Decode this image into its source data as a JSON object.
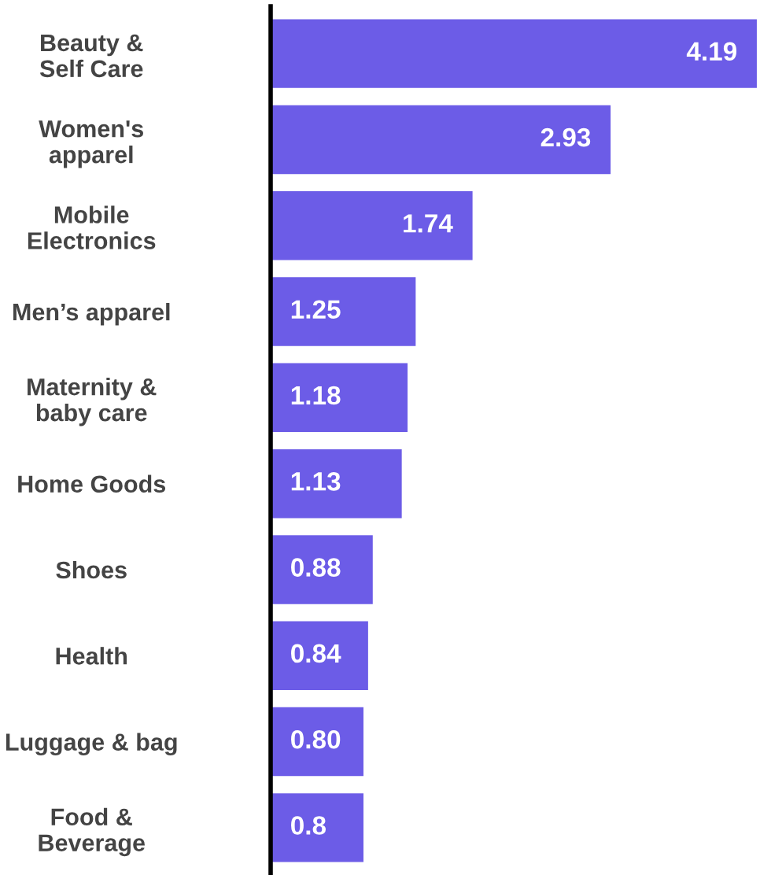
{
  "chart_data": {
    "type": "bar",
    "orientation": "horizontal",
    "categories": [
      "Beauty &\nSelf Care",
      "Women's\napparel",
      "Mobile\nElectronics",
      "Men’s apparel",
      "Maternity &\nbaby care",
      "Home Goods",
      "Shoes",
      "Health",
      "Luggage & bag",
      "Food &\nBeverage"
    ],
    "values": [
      4.19,
      2.93,
      1.74,
      1.25,
      1.18,
      1.13,
      0.88,
      0.84,
      0.8,
      0.8
    ],
    "value_labels": [
      "4.19",
      "2.93",
      "1.74",
      "1.25",
      "1.18",
      "1.13",
      "0.88",
      "0.84",
      "0.80",
      "0.8"
    ],
    "color": "#6c5ce7",
    "grid": false,
    "legend": false
  }
}
